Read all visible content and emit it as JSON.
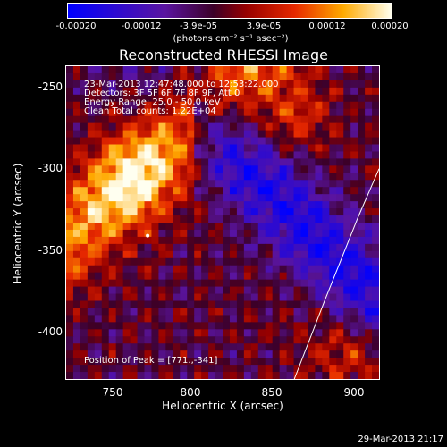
{
  "colorbar": {
    "ticks": [
      "-0.00020",
      "-0.00012",
      "-3.9e-05",
      "3.9e-05",
      "0.00012",
      "0.00020"
    ],
    "unit_label": "(photons cm⁻² s⁻¹ asec⁻²)",
    "range": [
      -0.0002,
      0.0002
    ]
  },
  "chart_data": {
    "type": "heatmap",
    "title": "Reconstructed RHESSI Image",
    "xlabel": "Heliocentric X (arcsec)",
    "ylabel": "Heliocentric Y (arcsec)",
    "xlim": [
      721,
      913
    ],
    "ylim": [
      -429,
      -237
    ],
    "x_ticks": [
      750,
      800,
      850,
      900
    ],
    "y_ticks": [
      -250,
      -300,
      -350,
      -400
    ],
    "annotations": {
      "time_range": "23-Mar-2013 12:47:48.000 to 12:53:22.000",
      "detectors": "Detectors: 3F 5F 6F 7F 8F 9F, Att 0",
      "energy": "Energy Range: 25.0 - 50.0 keV",
      "clean": "Clean     Total counts: 1.22E+04",
      "peak": "Position of Peak = [771.,-341]"
    },
    "peak_position": [
      771,
      -341
    ],
    "limb_curve": [
      [
        861,
        -429
      ],
      [
        880,
        -380
      ],
      [
        900,
        -330
      ],
      [
        913,
        -300
      ]
    ]
  },
  "footer": {
    "timestamp": "29-Mar-2013 21:17"
  }
}
